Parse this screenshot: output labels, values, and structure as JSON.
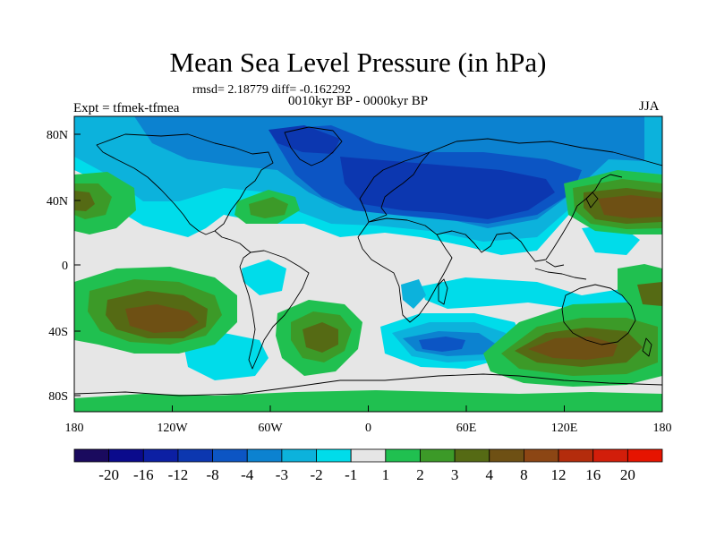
{
  "title": "Mean Sea Level Pressure (in hPa)",
  "stats": "rmsd= 2.18779 diff= -0.162292",
  "period": "0010kyr BP - 0000kyr BP",
  "experiment": "Expt = tfmek-tfmea",
  "season": "JJA",
  "map": {
    "background_color": "#e6e6e6",
    "lon_ticks": [
      "180",
      "120W",
      "60W",
      "0",
      "60E",
      "120E",
      "180"
    ],
    "lat_ticks": [
      "80N",
      "40N",
      "0",
      "40S",
      "80S"
    ]
  },
  "colorbar": {
    "labels": [
      "-20",
      "-16",
      "-12",
      "-8",
      "-4",
      "-3",
      "-2",
      "-1",
      "1",
      "2",
      "3",
      "4",
      "8",
      "12",
      "16",
      "20"
    ],
    "colors": [
      "#1a0a5e",
      "#0a0a8c",
      "#0c1fa3",
      "#0c37b0",
      "#0c55c4",
      "#0c82d0",
      "#0cb2dc",
      "#00dcea",
      "#e6e6e6",
      "#20c050",
      "#3c9a28",
      "#556a14",
      "#6e5014",
      "#8c4614",
      "#b42c0c",
      "#d21e0a",
      "#e61400"
    ]
  }
}
